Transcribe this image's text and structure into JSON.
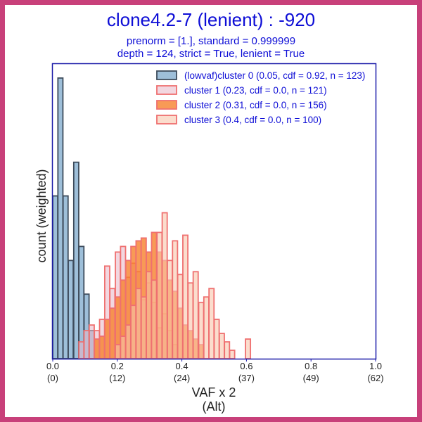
{
  "chart_data": {
    "type": "bar",
    "title": "clone4.2-7 (lenient) : -920",
    "subtitle_line1": "prenorm = [1.], standard = 0.999999",
    "subtitle_line2": "depth = 124, strict = True, lenient = True",
    "xlabel_line1": "VAF x 2",
    "xlabel_line2": "(Alt)",
    "ylabel": "count (weighted)",
    "xlim": [
      0,
      1
    ],
    "ylim": [
      0,
      1.05
    ],
    "x_ticks": [
      {
        "value": 0.0,
        "label": "0.0",
        "alt": "(0)"
      },
      {
        "value": 0.2,
        "label": "0.2",
        "alt": "(12)"
      },
      {
        "value": 0.4,
        "label": "0.4",
        "alt": "(24)"
      },
      {
        "value": 0.6,
        "label": "0.6",
        "alt": "(37)"
      },
      {
        "value": 0.8,
        "label": "0.8",
        "alt": "(49)"
      },
      {
        "value": 1.0,
        "label": "1.0",
        "alt": "(62)"
      }
    ],
    "bin_width": 0.01613,
    "series": [
      {
        "name": "(lowvaf)cluster 0 (0.05, cdf = 0.92, n = 123)",
        "fill": "#86afd0",
        "stroke": "#3e4c5c",
        "fill_opacity": 0.8,
        "bins": [
          [
            0.0,
            0.58
          ],
          [
            0.016,
            1.0
          ],
          [
            0.032,
            0.58
          ],
          [
            0.048,
            0.35
          ],
          [
            0.065,
            0.7
          ],
          [
            0.081,
            0.4
          ],
          [
            0.097,
            0.23
          ],
          [
            0.113,
            0.1
          ]
        ]
      },
      {
        "name": "cluster 1 (0.23, cdf = 0.0, n = 121)",
        "fill": "#e7b6c7",
        "stroke": "#ef7070",
        "fill_opacity": 0.55,
        "bins": [
          [
            0.081,
            0.06
          ],
          [
            0.097,
            0.1
          ],
          [
            0.113,
            0.12
          ],
          [
            0.129,
            0.1
          ],
          [
            0.145,
            0.14
          ],
          [
            0.161,
            0.33
          ],
          [
            0.177,
            0.25
          ],
          [
            0.194,
            0.38
          ],
          [
            0.21,
            0.4
          ],
          [
            0.226,
            0.29
          ],
          [
            0.242,
            0.34
          ],
          [
            0.258,
            0.31
          ],
          [
            0.274,
            0.21
          ],
          [
            0.29,
            0.27
          ],
          [
            0.306,
            0.2
          ],
          [
            0.323,
            0.11
          ],
          [
            0.339,
            0.16
          ],
          [
            0.355,
            0.1
          ],
          [
            0.371,
            0.05
          ]
        ]
      },
      {
        "name": "cluster 2 (0.31, cdf = 0.0, n = 156)",
        "fill": "#f6812c",
        "stroke": "#ef7070",
        "fill_opacity": 0.8,
        "bins": [
          [
            0.129,
            0.07
          ],
          [
            0.145,
            0.08
          ],
          [
            0.161,
            0.14
          ],
          [
            0.177,
            0.18
          ],
          [
            0.194,
            0.22
          ],
          [
            0.21,
            0.28
          ],
          [
            0.226,
            0.35
          ],
          [
            0.242,
            0.4
          ],
          [
            0.258,
            0.42
          ],
          [
            0.274,
            0.43
          ],
          [
            0.29,
            0.38
          ],
          [
            0.306,
            0.45
          ],
          [
            0.323,
            0.38
          ],
          [
            0.339,
            0.35
          ],
          [
            0.355,
            0.28
          ],
          [
            0.371,
            0.24
          ],
          [
            0.387,
            0.18
          ],
          [
            0.403,
            0.12
          ],
          [
            0.419,
            0.1
          ],
          [
            0.435,
            0.07
          ],
          [
            0.452,
            0.05
          ]
        ]
      },
      {
        "name": "cluster 3 (0.4, cdf = 0.0, n = 100)",
        "fill": "#f8c6ac",
        "stroke": "#ef7070",
        "fill_opacity": 0.6,
        "bins": [
          [
            0.194,
            0.05
          ],
          [
            0.21,
            0.08
          ],
          [
            0.226,
            0.12
          ],
          [
            0.242,
            0.19
          ],
          [
            0.258,
            0.25
          ],
          [
            0.274,
            0.22
          ],
          [
            0.29,
            0.31
          ],
          [
            0.306,
            0.28
          ],
          [
            0.323,
            0.45
          ],
          [
            0.339,
            0.52
          ],
          [
            0.355,
            0.35
          ],
          [
            0.371,
            0.42
          ],
          [
            0.387,
            0.3
          ],
          [
            0.403,
            0.44
          ],
          [
            0.419,
            0.27
          ],
          [
            0.435,
            0.31
          ],
          [
            0.452,
            0.2
          ],
          [
            0.468,
            0.22
          ],
          [
            0.484,
            0.25
          ],
          [
            0.5,
            0.14
          ],
          [
            0.516,
            0.09
          ],
          [
            0.532,
            0.06
          ],
          [
            0.548,
            0.03
          ],
          [
            0.597,
            0.07
          ]
        ]
      }
    ],
    "colors": {
      "frame": "#c8407a",
      "title": "#0d0dd6",
      "axes": "#1a1aa8"
    }
  }
}
